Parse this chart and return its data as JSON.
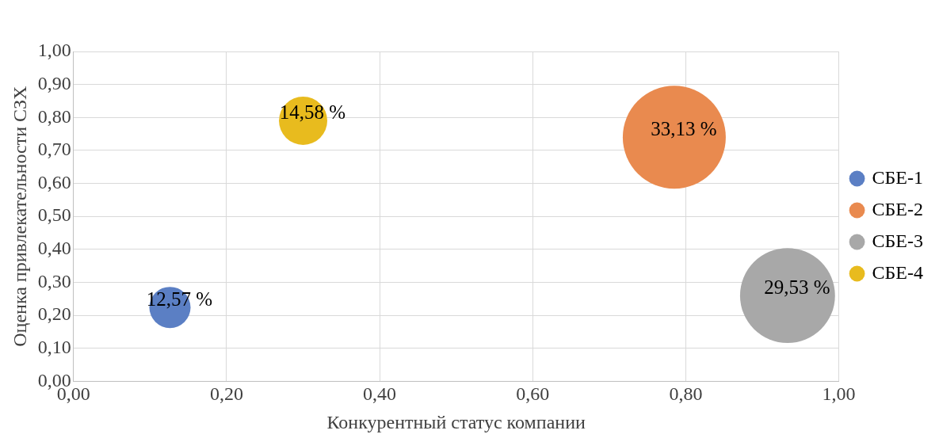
{
  "chart_data": {
    "type": "bubble",
    "xlabel": "Конкурентный статус компании",
    "ylabel": "Оценка привлекательности СЗХ",
    "series": [
      {
        "name": "СБЕ-1",
        "color": "#5b7fc4",
        "x": [
          0.126
        ],
        "values": [
          0.224
        ],
        "sizes": [
          0.16
        ]
      },
      {
        "name": "СБЕ-2",
        "color": "#e98a4f",
        "x": [
          0.785
        ],
        "values": [
          0.74
        ],
        "sizes": [
          1
        ]
      },
      {
        "name": "СБЕ-3",
        "color": "#a8a8a8",
        "x": [
          0.933
        ],
        "values": [
          0.26
        ],
        "sizes": [
          0.85
        ]
      },
      {
        "name": "СБЕ-4",
        "color": "#e8bb1e",
        "x": [
          0.3
        ],
        "values": [
          0.79
        ],
        "sizes": [
          0.22
        ]
      }
    ],
    "annotations": [
      {
        "text": "12,57 %",
        "x": 0.126,
        "y": 0.224
      },
      {
        "text": "33,13 %",
        "x": 0.785,
        "y": 0.74
      },
      {
        "text": "29,53 %",
        "x": 0.933,
        "y": 0.26
      },
      {
        "text": "14,58 %",
        "x": 0.3,
        "y": 0.79
      }
    ],
    "xlim": [
      0,
      1
    ],
    "xticks": [
      {
        "value": 0,
        "label": "0,00"
      },
      {
        "value": 0.2,
        "label": "0,20"
      },
      {
        "value": 0.4,
        "label": "0,40"
      },
      {
        "value": 0.6,
        "label": "0,60"
      },
      {
        "value": 0.8,
        "label": "0,80"
      },
      {
        "value": 1,
        "label": "1,00"
      }
    ],
    "ylim": [
      0,
      1
    ],
    "yticks": [
      {
        "value": 0,
        "label": "0,00"
      },
      {
        "value": 0.1,
        "label": "0,10"
      },
      {
        "value": 0.2,
        "label": "0,20"
      },
      {
        "value": 0.3,
        "label": "0,30"
      },
      {
        "value": 0.4,
        "label": "0,40"
      },
      {
        "value": 0.5,
        "label": "0,50"
      },
      {
        "value": 0.6,
        "label": "0,60"
      },
      {
        "value": 0.7,
        "label": "0,70"
      },
      {
        "value": 0.8,
        "label": "0,80"
      },
      {
        "value": 0.9,
        "label": "0,90"
      },
      {
        "value": 1,
        "label": "1,00"
      }
    ],
    "grid": true,
    "legend": "right"
  }
}
